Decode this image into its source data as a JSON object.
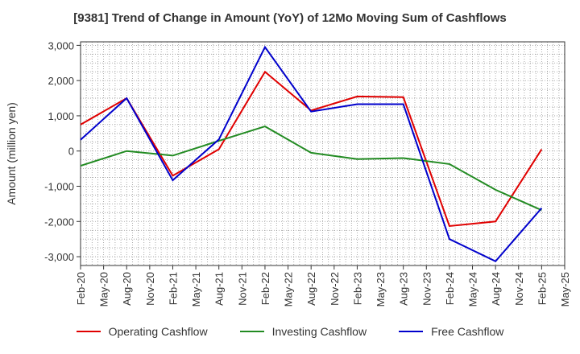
{
  "chart_data": {
    "type": "line",
    "title": "[9381]  Trend of Change in Amount (YoY) of 12Mo Moving Sum of Cashflows",
    "xlabel": "",
    "ylabel": "Amount (million yen)",
    "ylim": [
      -3250,
      3100
    ],
    "yticks": [
      3000,
      2000,
      1000,
      0,
      -1000,
      -2000,
      -3000
    ],
    "ytick_labels": [
      "3,000",
      "2,000",
      "1,000",
      "0",
      "-1,000",
      "-2,000",
      "-3,000"
    ],
    "categories": [
      "Feb-20",
      "May-20",
      "Aug-20",
      "Nov-20",
      "Feb-21",
      "May-21",
      "Aug-21",
      "Nov-21",
      "Feb-22",
      "May-22",
      "Aug-22",
      "Nov-22",
      "Feb-23",
      "May-23",
      "Aug-23",
      "Nov-23",
      "Feb-24",
      "May-24",
      "Aug-24",
      "Nov-24",
      "Feb-25",
      "May-25"
    ],
    "series": [
      {
        "name": "Operating Cashflow",
        "color": "#e00000",
        "points": [
          [
            0,
            750
          ],
          [
            2,
            1500
          ],
          [
            4,
            -700
          ],
          [
            6,
            50
          ],
          [
            8,
            2250
          ],
          [
            10,
            1150
          ],
          [
            12,
            1550
          ],
          [
            14,
            1530
          ],
          [
            16,
            -2130
          ],
          [
            18,
            -2000
          ],
          [
            20,
            50
          ]
        ]
      },
      {
        "name": "Investing Cashflow",
        "color": "#228b22",
        "points": [
          [
            0,
            -420
          ],
          [
            2,
            0
          ],
          [
            4,
            -130
          ],
          [
            6,
            290
          ],
          [
            8,
            700
          ],
          [
            10,
            -50
          ],
          [
            12,
            -230
          ],
          [
            14,
            -200
          ],
          [
            16,
            -370
          ],
          [
            18,
            -1100
          ],
          [
            20,
            -1680
          ]
        ]
      },
      {
        "name": "Free Cashflow",
        "color": "#0000cc",
        "points": [
          [
            0,
            320
          ],
          [
            2,
            1500
          ],
          [
            4,
            -830
          ],
          [
            6,
            330
          ],
          [
            8,
            2950
          ],
          [
            10,
            1120
          ],
          [
            12,
            1330
          ],
          [
            14,
            1330
          ],
          [
            16,
            -2500
          ],
          [
            18,
            -3130
          ],
          [
            20,
            -1620
          ]
        ]
      }
    ],
    "legend": "bottom",
    "grid": true
  }
}
